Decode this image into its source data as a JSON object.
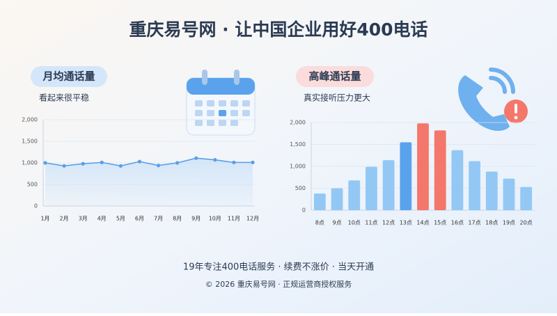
{
  "title": "重庆易号网 · 让中国企业用好400电话",
  "chart_data": [
    {
      "type": "line",
      "badge": "月均通话量",
      "subtitle": "看起来很平稳",
      "categories": [
        "1月",
        "2月",
        "3月",
        "4月",
        "5月",
        "6月",
        "7月",
        "8月",
        "9月",
        "10月",
        "11月",
        "12月"
      ],
      "series": [
        {
          "color": "#5a9fe6",
          "values": [
            1000,
            930,
            980,
            1010,
            930,
            1030,
            940,
            1000,
            1110,
            1070,
            1010,
            1010
          ]
        }
      ],
      "ylim": [
        0,
        2000
      ],
      "yticks": [
        0,
        500,
        {
          "value": 1000,
          "label": "1,000"
        },
        {
          "value": 1500,
          "label": "1,500"
        },
        {
          "value": 2000,
          "label": "2,000"
        }
      ],
      "grid": true
    },
    {
      "type": "bar",
      "badge": "高峰通话量",
      "subtitle": "真实接听压力更大",
      "categories": [
        "8点",
        "9点",
        "10点",
        "11点",
        "12点",
        "13点",
        "14点",
        "15点",
        "16点",
        "17点",
        "18点",
        "19点",
        "20点"
      ],
      "values": [
        380,
        500,
        680,
        990,
        1140,
        1550,
        1980,
        1820,
        1370,
        1120,
        880,
        720,
        530
      ],
      "colors": [
        "#93c8f5",
        "#93c8f5",
        "#93c8f5",
        "#93c8f5",
        "#93c8f5",
        "#5aa3ec",
        "#f3776a",
        "#f3776a",
        "#93c8f5",
        "#93c8f5",
        "#93c8f5",
        "#93c8f5",
        "#93c8f5"
      ],
      "ylim": [
        0,
        2000
      ],
      "yticks": [
        0,
        500,
        {
          "value": 1000,
          "label": "1,000"
        },
        {
          "value": 1500,
          "label": "1,500"
        },
        {
          "value": 2000,
          "label": "2,000"
        }
      ],
      "grid": true
    }
  ],
  "footer": {
    "line1": "19年专注400电话服务 · 续费不涨价 · 当天开通",
    "line2": "© 2026 重庆易号网 · 正规运营商授权服务"
  }
}
